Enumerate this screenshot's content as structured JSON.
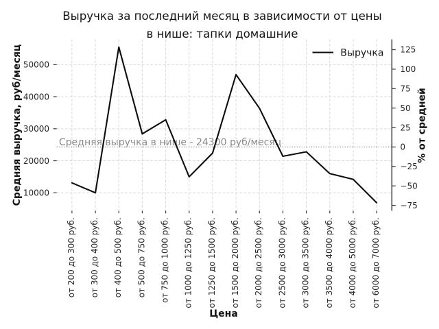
{
  "chart_data": {
    "type": "line",
    "title": "Выручка за последний месяц в зависимости от цены в нише: тапки домашние",
    "title_lines": [
      "Выручка за последний месяц в зависимости от цены",
      "в нише: тапки домашние"
    ],
    "xlabel": "Цена",
    "ylabel": "Средняя выручка, руб/месяц",
    "ylabel_right": "% от средней",
    "categories": [
      "от 200 до 300 руб.",
      "от 300 до 400 руб.",
      "от 400 до 500 руб.",
      "от 500 до 750 руб.",
      "от 750 до 1000 руб.",
      "от 1000 до 1250 руб.",
      "от 1250 до 1500 руб.",
      "от 1500 до 2000 руб.",
      "от 2000 до 2500 руб.",
      "от 2500 до 3000 руб.",
      "от 3000 до 3500 руб.",
      "от 3500 до 4000 руб.",
      "от 4000 до 5000 руб.",
      "от 6000 до 7000 руб."
    ],
    "series": [
      {
        "name": "Выручка",
        "values": [
          13100,
          10000,
          55500,
          28400,
          32800,
          15000,
          22400,
          46900,
          36400,
          21400,
          22800,
          16000,
          14200,
          6900
        ]
      }
    ],
    "yticks": [
      10000,
      20000,
      30000,
      40000,
      50000
    ],
    "yticks_right": [
      -75,
      -50,
      -25,
      0,
      25,
      50,
      75,
      100,
      125
    ],
    "ylim": [
      4370,
      57890
    ],
    "x_margin": 0.65,
    "average_line": {
      "value": 24300,
      "label": "Средняя выручка в нише - 24300 руб/месяц"
    },
    "legend": {
      "label": "Выручка",
      "position": "upper right"
    },
    "grid": true,
    "colors": {
      "series": "#0d0d0d",
      "grid": "#d9d9d9",
      "average_line": "#9c9c9c",
      "annotation": "#8a8a8a",
      "spine": "#2b2b2b",
      "tick": "#333333"
    }
  }
}
